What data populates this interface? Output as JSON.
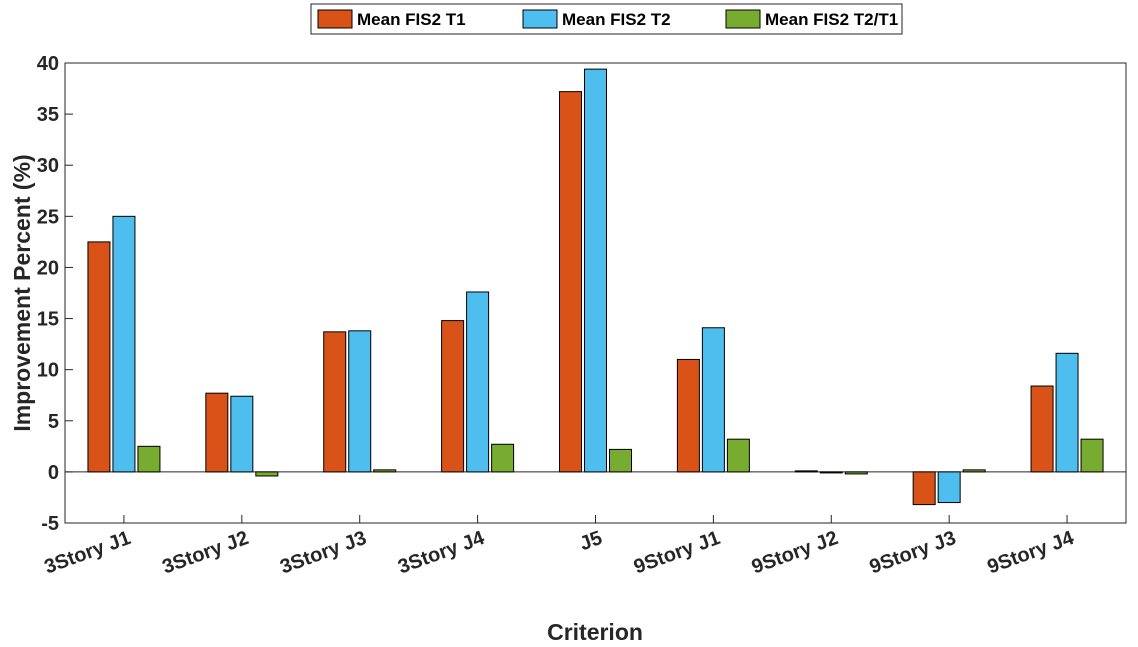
{
  "chart_data": {
    "type": "bar",
    "title": "",
    "xlabel": "Criterion",
    "ylabel": "Improvement Percent (%)",
    "categories": [
      "3Story J1",
      "3Story J2",
      "3Story J3",
      "3Story J4",
      "J5",
      "9Story J1",
      "9Story J2",
      "9Story J3",
      "9Story J4"
    ],
    "series": [
      {
        "name": "Mean FIS2 T1",
        "color": "#D95319",
        "values": [
          22.5,
          7.7,
          13.7,
          14.8,
          37.2,
          11.0,
          0.1,
          -3.2,
          8.4
        ]
      },
      {
        "name": "Mean FIS2 T2",
        "color": "#4DBEEE",
        "values": [
          25.0,
          7.4,
          13.8,
          17.6,
          39.4,
          14.1,
          -0.1,
          -3.0,
          11.6
        ]
      },
      {
        "name": "Mean FIS2 T2/T1",
        "color": "#77AC30",
        "values": [
          2.5,
          -0.4,
          0.2,
          2.7,
          2.2,
          3.2,
          -0.2,
          0.2,
          3.2
        ]
      }
    ],
    "ylim": [
      -5,
      40
    ],
    "yticks": [
      -5,
      0,
      5,
      10,
      15,
      20,
      25,
      30,
      35,
      40
    ],
    "ytick_labels": [
      "-5",
      "0",
      "5",
      "10",
      "15",
      "20",
      "25",
      "30",
      "35",
      "40"
    ],
    "grid": false,
    "legend_position": "top-center"
  }
}
